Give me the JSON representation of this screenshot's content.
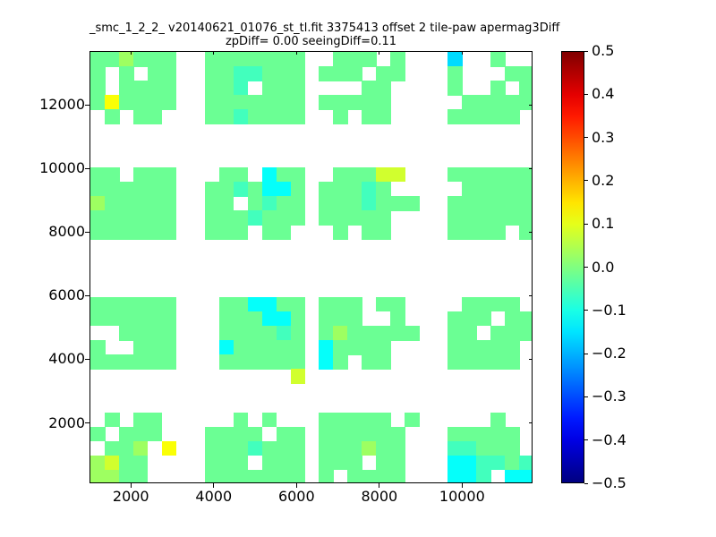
{
  "figure": {
    "background": "#ffffff",
    "frame_color": "#000000",
    "text_color": "#000000"
  },
  "header": {
    "title": "_smc_1_2_2_ v20140621_01076_st_tl.fit 3375413 offset 2 tile-paw apermag3Diff",
    "subtitle": "zpDiff= 0.00 seeingDiff=0.11"
  },
  "chart_data": {
    "type": "heatmap",
    "title": "_smc_1_2_2_ v20140621_01076_st_tl.fit 3375413 offset 2 tile-paw apermag3Diff",
    "subtitle": "zpDiff= 0.00 seeingDiff=0.11",
    "xlabel": "",
    "ylabel": "",
    "xlim": [
      1000,
      11700
    ],
    "ylim": [
      100,
      13700
    ],
    "xticks": [
      2000,
      4000,
      6000,
      8000,
      10000
    ],
    "xtick_labels": [
      "2000",
      "4000",
      "6000",
      "8000",
      "10000"
    ],
    "yticks": [
      2000,
      4000,
      6000,
      8000,
      10000,
      12000
    ],
    "ytick_labels": [
      "2000",
      "4000",
      "6000",
      "8000",
      "10000",
      "12000"
    ],
    "grid_on": false,
    "colorbar": {
      "position": "right",
      "colormap": "jet",
      "min": -0.5,
      "max": 0.5,
      "tick_values": [
        0.5,
        0.4,
        0.3,
        0.2,
        0.1,
        0.0,
        -0.1,
        -0.2,
        -0.3,
        -0.4,
        -0.5
      ],
      "tick_labels": [
        "0.5",
        "0.4",
        "0.3",
        "0.2",
        "0.1",
        "0.0",
        "−0.1",
        "−0.2",
        "−0.3",
        "−0.4",
        "−0.5"
      ]
    },
    "grid": {
      "comment": "31x30 bins over plot area; '.'=no data (white); letters map to apermag3Diff bin values via value_map; 4x4 detector-block layout of the paw print",
      "cols": 31,
      "rows": 30,
      "null_char": ".",
      "value_map": {
        "a": -0.02,
        "b": 0.03,
        "c": 0.08,
        "d": 0.12,
        "e": -0.06,
        "f": -0.12,
        "g": -0.16
      },
      "rows_encoded": [
        "aabaaa..aaaaaaa..aaa.a...g..a..",
        "a.a.aa..aaeeaaa.aaa.aa...a...aa",
        "a.aaaa..aae.aaa....aa....a..a.a",
        "adaaaa..aaaaaaa.aaaaa.....aaaaa",
        ".a.aa...aaeaaaa..a.aa....aaaaa.",
        "...............................",
        "...............................",
        "...............................",
        "aa.aaa...aa.faa..aaacc...aaaaaa",
        "aaaaaa..aaeaffa.aaaea.....aaaaa",
        "baaaaa..aa.aeaa.aaaeaaa..aaaaaa",
        "aaaaaa..aaaeaaa.aaaaa....aaaaaa",
        "aaaaaa..aaa.aa...a.aa....aaaa.a",
        "...............................",
        "...............................",
        "...............................",
        "...............................",
        "aaaaaa...aaffaa.aaa.aa....aaaa.",
        "aaaaaa...aaaffa.aaa..a...aaa.aa",
        "..aaaa...aaaaea.abaaaaa..aa.aaa",
        "a..aaa...faaaaa.faaaa....aaaaa.",
        "aaaaaa...aaaaaa.fa.aa....aaaaa.",
        "..............c................",
        "...............................",
        "...............................",
        ".a.aa.....a.a...aaaaa.a.....a..",
        "a.aaa...aaaa.aa.aaaaaa...aaaaa.",
        ".aab.d..aaaeaaa.aaabaa...eeaaa.",
        "bcaa....aaa.aaa.aaa.aa...ffeeae",
        "bbaa....aaaaaaa.a.aaaa...ffe.ff"
      ]
    }
  }
}
